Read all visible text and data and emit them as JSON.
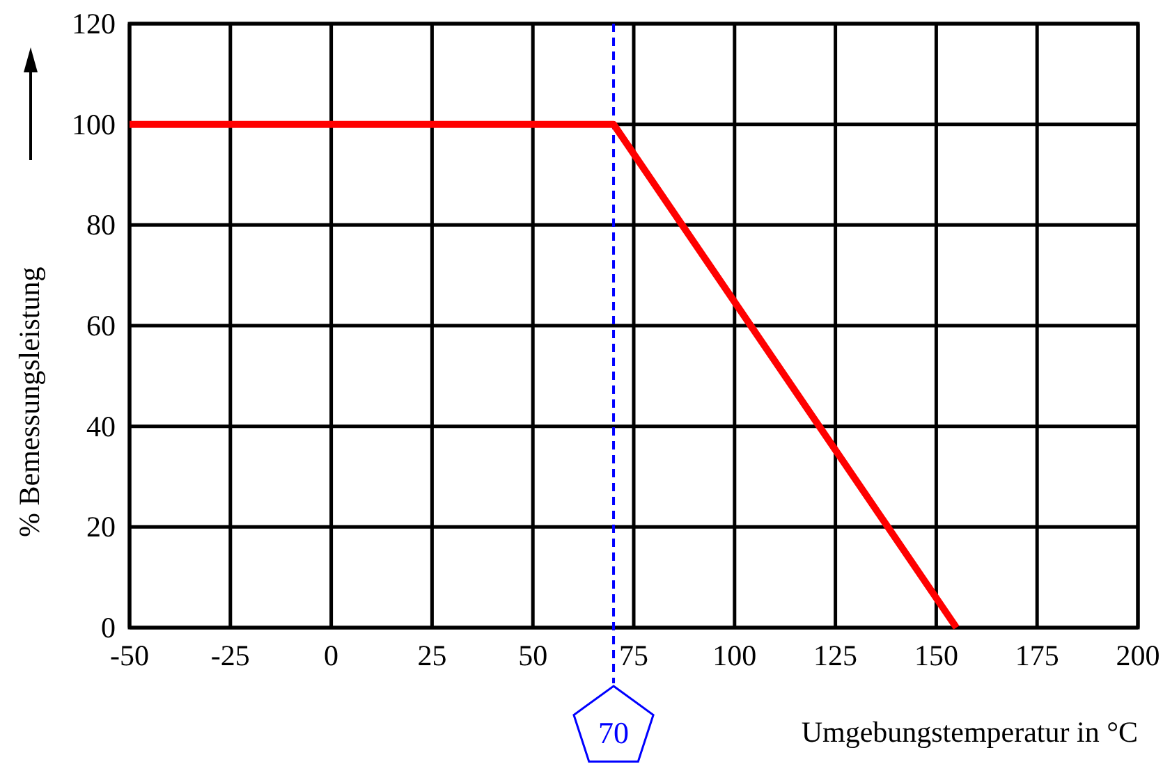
{
  "chart_data": {
    "type": "line",
    "xlabel": "Umgebungstemperatur in °C",
    "ylabel": "% Bemessungsleistung",
    "x": [
      -50,
      70,
      155
    ],
    "series": [
      {
        "color": "#ff0000",
        "values": [
          100,
          100,
          0
        ]
      }
    ],
    "xlim": [
      -50,
      200
    ],
    "xticks": [
      -50,
      -25,
      0,
      25,
      50,
      75,
      100,
      125,
      150,
      175,
      200
    ],
    "ylim": [
      0,
      120
    ],
    "yticks": [
      0,
      20,
      40,
      60,
      80,
      100,
      120
    ],
    "grid": true,
    "marker": "none",
    "line_style": "solid",
    "ref_lines": [
      {
        "axis": "x",
        "value": 70,
        "label": "70",
        "color": "#0000ff",
        "line_style": "dashed"
      }
    ]
  }
}
